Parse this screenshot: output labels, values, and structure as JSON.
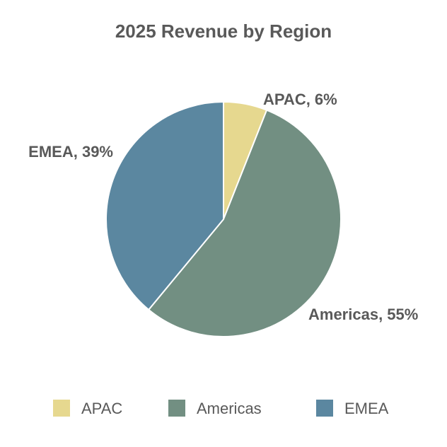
{
  "chart_data": {
    "type": "pie",
    "title": "2025 Revenue by Region",
    "slices": [
      {
        "label": "APAC",
        "value": 6,
        "color": "#E6D88F",
        "data_label": "APAC, 6%"
      },
      {
        "label": "Americas",
        "value": 55,
        "color": "#728F82",
        "data_label": "Americas, 55%"
      },
      {
        "label": "EMEA",
        "value": 39,
        "color": "#5B87A0",
        "data_label": "EMEA, 39%"
      }
    ],
    "legend": {
      "position": "bottom",
      "entries": [
        "APAC",
        "Americas",
        "EMEA"
      ]
    },
    "start_angle": "top, clockwise"
  }
}
